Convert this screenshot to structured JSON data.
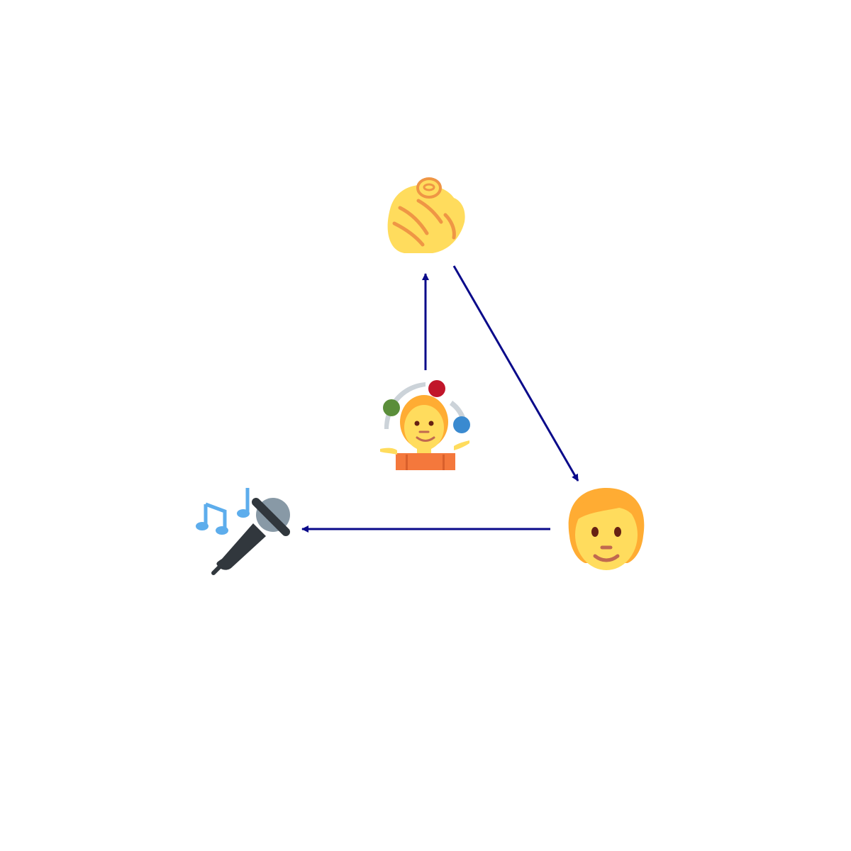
{
  "diagram": {
    "title": "",
    "nodes": [
      {
        "id": "pointing",
        "icon": "pointing-at-viewer-icon"
      },
      {
        "id": "juggler",
        "icon": "person-juggling-icon"
      },
      {
        "id": "person",
        "icon": "person-face-icon"
      },
      {
        "id": "karaoke",
        "icon": "microphone-music-icon"
      }
    ],
    "edges": [
      {
        "from": "juggler",
        "to": "pointing"
      },
      {
        "from": "pointing",
        "to": "person"
      },
      {
        "from": "person",
        "to": "karaoke"
      }
    ],
    "colors": {
      "arrow": "#0a0a8a",
      "skin": "#FFDC5D",
      "skin_line": "#EF9645",
      "hair": "#FFAC33",
      "shirt": "#F4783C",
      "shirt_dark": "#D95F2B",
      "ball_red": "#C1162A",
      "ball_green": "#5B8E3A",
      "ball_blue": "#3A8AD0",
      "swoosh": "#CCD3D9",
      "mic_body": "#31373D",
      "mic_head": "#8899A6",
      "notes": "#5DADEC",
      "eyes": "#662113",
      "mouth": "#C1694F"
    }
  }
}
